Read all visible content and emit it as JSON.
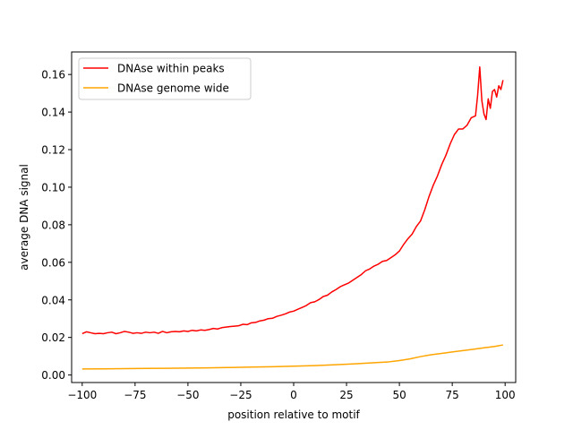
{
  "chart_data": {
    "type": "line",
    "title": "",
    "xlabel": "position relative to motif",
    "ylabel": "average DNA signal",
    "xlim": [
      -105,
      105
    ],
    "ylim": [
      -0.004,
      0.172
    ],
    "xticks": [
      -100,
      -75,
      -50,
      -25,
      0,
      25,
      50,
      75,
      100
    ],
    "xtick_labels": [
      "−100",
      "−75",
      "−50",
      "−25",
      "0",
      "25",
      "50",
      "75",
      "100"
    ],
    "yticks": [
      0.0,
      0.02,
      0.04,
      0.06,
      0.08,
      0.1,
      0.12,
      0.14,
      0.16
    ],
    "ytick_labels": [
      "0.00",
      "0.02",
      "0.04",
      "0.06",
      "0.08",
      "0.10",
      "0.12",
      "0.14",
      "0.16"
    ],
    "grid": false,
    "legend_position": "top-left",
    "series": [
      {
        "name": "DNAse within peaks",
        "color": "#ff0000",
        "points": [
          [
            -100,
            0.022
          ],
          [
            -98,
            0.023
          ],
          [
            -96,
            0.0225
          ],
          [
            -94,
            0.022
          ],
          [
            -92,
            0.0222
          ],
          [
            -90,
            0.022
          ],
          [
            -88,
            0.0225
          ],
          [
            -86,
            0.0228
          ],
          [
            -84,
            0.022
          ],
          [
            -82,
            0.0225
          ],
          [
            -80,
            0.0232
          ],
          [
            -78,
            0.0228
          ],
          [
            -76,
            0.0222
          ],
          [
            -74,
            0.0225
          ],
          [
            -72,
            0.0222
          ],
          [
            -70,
            0.0228
          ],
          [
            -68,
            0.0225
          ],
          [
            -66,
            0.0228
          ],
          [
            -64,
            0.0222
          ],
          [
            -62,
            0.0232
          ],
          [
            -60,
            0.0225
          ],
          [
            -58,
            0.023
          ],
          [
            -56,
            0.0232
          ],
          [
            -54,
            0.023
          ],
          [
            -52,
            0.0235
          ],
          [
            -50,
            0.0232
          ],
          [
            -48,
            0.0238
          ],
          [
            -46,
            0.0235
          ],
          [
            -44,
            0.024
          ],
          [
            -42,
            0.0238
          ],
          [
            -40,
            0.0242
          ],
          [
            -38,
            0.0248
          ],
          [
            -36,
            0.0245
          ],
          [
            -34,
            0.0252
          ],
          [
            -32,
            0.0255
          ],
          [
            -30,
            0.0258
          ],
          [
            -28,
            0.026
          ],
          [
            -26,
            0.0262
          ],
          [
            -24,
            0.027
          ],
          [
            -22,
            0.0268
          ],
          [
            -20,
            0.0278
          ],
          [
            -18,
            0.028
          ],
          [
            -16,
            0.0288
          ],
          [
            -14,
            0.0292
          ],
          [
            -12,
            0.03
          ],
          [
            -10,
            0.0302
          ],
          [
            -8,
            0.0312
          ],
          [
            -6,
            0.0318
          ],
          [
            -4,
            0.0325
          ],
          [
            -2,
            0.0335
          ],
          [
            0,
            0.034
          ],
          [
            2,
            0.035
          ],
          [
            4,
            0.036
          ],
          [
            6,
            0.037
          ],
          [
            8,
            0.0385
          ],
          [
            10,
            0.039
          ],
          [
            12,
            0.0402
          ],
          [
            14,
            0.0418
          ],
          [
            16,
            0.0425
          ],
          [
            18,
            0.0442
          ],
          [
            20,
            0.0455
          ],
          [
            22,
            0.047
          ],
          [
            24,
            0.048
          ],
          [
            26,
            0.049
          ],
          [
            28,
            0.0505
          ],
          [
            30,
            0.052
          ],
          [
            32,
            0.0535
          ],
          [
            34,
            0.0555
          ],
          [
            36,
            0.0565
          ],
          [
            38,
            0.058
          ],
          [
            40,
            0.059
          ],
          [
            42,
            0.0605
          ],
          [
            44,
            0.061
          ],
          [
            46,
            0.0625
          ],
          [
            48,
            0.064
          ],
          [
            50,
            0.066
          ],
          [
            52,
            0.0695
          ],
          [
            54,
            0.0725
          ],
          [
            56,
            0.075
          ],
          [
            58,
            0.079
          ],
          [
            60,
            0.082
          ],
          [
            62,
            0.088
          ],
          [
            64,
            0.095
          ],
          [
            66,
            0.101
          ],
          [
            68,
            0.106
          ],
          [
            70,
            0.112
          ],
          [
            72,
            0.117
          ],
          [
            74,
            0.123
          ],
          [
            76,
            0.128
          ],
          [
            78,
            0.131
          ],
          [
            80,
            0.131
          ],
          [
            82,
            0.133
          ],
          [
            84,
            0.137
          ],
          [
            86,
            0.138
          ],
          [
            87,
            0.149
          ],
          [
            88,
            0.164
          ],
          [
            89,
            0.146
          ],
          [
            90,
            0.139
          ],
          [
            91,
            0.136
          ],
          [
            92,
            0.147
          ],
          [
            93,
            0.142
          ],
          [
            94,
            0.151
          ],
          [
            95,
            0.152
          ],
          [
            96,
            0.148
          ],
          [
            97,
            0.154
          ],
          [
            98,
            0.152
          ],
          [
            99,
            0.157
          ]
        ]
      },
      {
        "name": "DNAse genome wide",
        "color": "#ffa500",
        "points": [
          [
            -100,
            0.0032
          ],
          [
            -90,
            0.0033
          ],
          [
            -80,
            0.0034
          ],
          [
            -70,
            0.0035
          ],
          [
            -60,
            0.0036
          ],
          [
            -50,
            0.0037
          ],
          [
            -40,
            0.0038
          ],
          [
            -30,
            0.004
          ],
          [
            -20,
            0.0042
          ],
          [
            -10,
            0.0044
          ],
          [
            0,
            0.0047
          ],
          [
            10,
            0.005
          ],
          [
            20,
            0.0055
          ],
          [
            30,
            0.006
          ],
          [
            40,
            0.0067
          ],
          [
            45,
            0.007
          ],
          [
            50,
            0.0077
          ],
          [
            55,
            0.0086
          ],
          [
            60,
            0.0098
          ],
          [
            65,
            0.0108
          ],
          [
            70,
            0.0115
          ],
          [
            75,
            0.0123
          ],
          [
            80,
            0.013
          ],
          [
            85,
            0.0137
          ],
          [
            90,
            0.0145
          ],
          [
            95,
            0.0152
          ],
          [
            99,
            0.016
          ]
        ]
      }
    ]
  }
}
